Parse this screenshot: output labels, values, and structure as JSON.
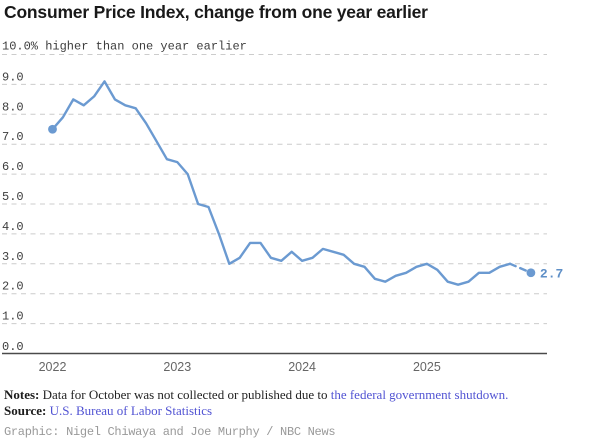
{
  "header": {
    "title": "Consumer Price Index, change from one year earlier"
  },
  "chart_data": {
    "type": "line",
    "title": "Consumer Price Index, change from one year earlier",
    "annotation_top_label": "10.0% higher than one year earlier",
    "legend": "none",
    "grid": "dashed horizontal gridlines",
    "y_axis": {
      "min": 0,
      "max": 10,
      "tick_step": 1,
      "tick_labels": [
        "0.0",
        "1.0",
        "2.0",
        "3.0",
        "4.0",
        "5.0",
        "6.0",
        "7.0",
        "8.0",
        "9.0"
      ]
    },
    "x_axis": {
      "year_labels": [
        "2022",
        "2023",
        "2024",
        "2025"
      ],
      "start_month": "2022-01",
      "end_month": "2025-11"
    },
    "series": [
      {
        "name": "CPI, % change from one year earlier",
        "months": [
          "2022-01",
          "2022-02",
          "2022-03",
          "2022-04",
          "2022-05",
          "2022-06",
          "2022-07",
          "2022-08",
          "2022-09",
          "2022-10",
          "2022-11",
          "2022-12",
          "2023-01",
          "2023-02",
          "2023-03",
          "2023-04",
          "2023-05",
          "2023-06",
          "2023-07",
          "2023-08",
          "2023-09",
          "2023-10",
          "2023-11",
          "2023-12",
          "2024-01",
          "2024-02",
          "2024-03",
          "2024-04",
          "2024-05",
          "2024-06",
          "2024-07",
          "2024-08",
          "2024-09",
          "2024-10",
          "2024-11",
          "2024-12",
          "2025-01",
          "2025-02",
          "2025-03",
          "2025-04",
          "2025-05",
          "2025-06",
          "2025-07",
          "2025-08",
          "2025-09",
          "2025-10",
          "2025-11"
        ],
        "values": [
          7.5,
          7.9,
          8.5,
          8.3,
          8.6,
          9.1,
          8.5,
          8.3,
          8.2,
          7.7,
          7.1,
          6.5,
          6.4,
          6.0,
          5.0,
          4.9,
          4.0,
          3.0,
          3.2,
          3.7,
          3.7,
          3.2,
          3.1,
          3.4,
          3.1,
          3.2,
          3.5,
          3.4,
          3.3,
          3.0,
          2.9,
          2.5,
          2.4,
          2.6,
          2.7,
          2.9,
          3.0,
          2.8,
          2.4,
          2.3,
          2.4,
          2.7,
          2.7,
          2.9,
          3.0,
          null,
          2.7
        ]
      }
    ],
    "missing_months": [
      "2025-10"
    ],
    "solid_until_month": "2025-09",
    "start_point": {
      "month": "2022-01",
      "value": 7.5
    },
    "end_point": {
      "month": "2025-11",
      "value": 2.7,
      "label": "2.7"
    },
    "colors": {
      "line": "#6b9ad1",
      "end_label": "#5e8fc7",
      "grid": "#cccccc",
      "axis": "#4a4a4a",
      "tick_text": "#3d3d3d",
      "year_text": "#666666"
    }
  },
  "footer": {
    "notes_label": "Notes:",
    "notes_text": "Data for October was not collected or published due to",
    "notes_link": "the federal government shutdown.",
    "source_label": "Source:",
    "source_link": "U.S. Bureau of Labor Statistics",
    "graphic_credit": "Graphic: Nigel Chiwaya and Joe Murphy / NBC News",
    "link_color": "#5153d3"
  }
}
